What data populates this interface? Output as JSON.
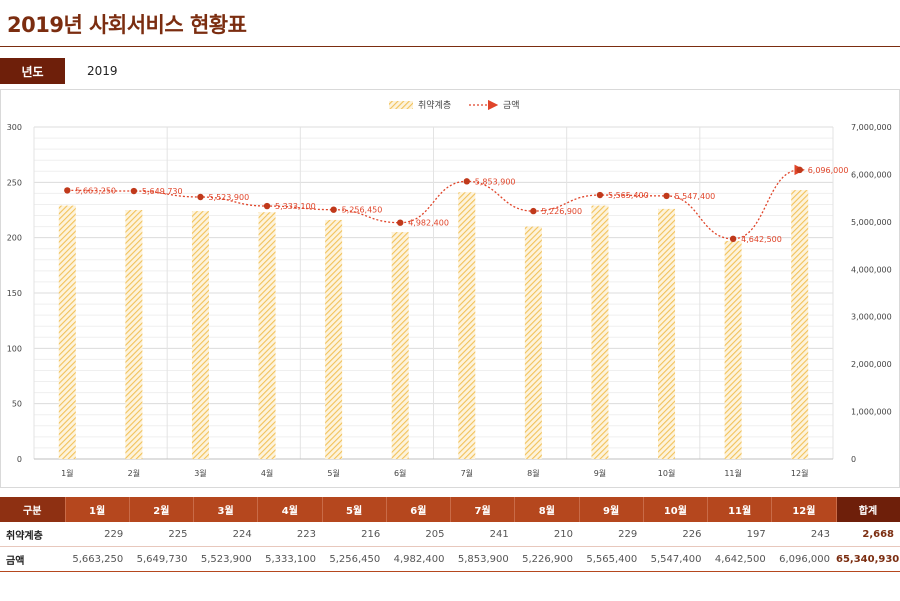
{
  "header": {
    "title": "2019년 사회서비스 현황표"
  },
  "filter": {
    "year_label": "년도",
    "year_value": "2019"
  },
  "colors": {
    "bar": "#f2c25a",
    "line": "#e0452a",
    "title": "#7b2d10",
    "table_header": "#b5471e",
    "total_header": "#6e1f0a"
  },
  "chart_data": {
    "type": "bar+line",
    "categories": [
      "1월",
      "2월",
      "3월",
      "4월",
      "5월",
      "6월",
      "7월",
      "8월",
      "9월",
      "10월",
      "11월",
      "12월"
    ],
    "series": [
      {
        "name": "취약계층",
        "type": "bar",
        "axis": "left",
        "values": [
          229,
          225,
          224,
          223,
          216,
          205,
          241,
          210,
          229,
          226,
          197,
          243
        ]
      },
      {
        "name": "금액",
        "type": "line",
        "axis": "right",
        "values": [
          5663250,
          5649730,
          5523900,
          5333100,
          5256450,
          4982400,
          5853900,
          5226900,
          5565400,
          5547400,
          4642500,
          6096000
        ],
        "labels": [
          "5,663,250",
          "5,649,730",
          "5,523,900",
          "5,333,100",
          "5,256,450",
          "4,982,400",
          "5,853,900",
          "5,226,900",
          "5,565,400",
          "5,547,400",
          "4,642,500",
          "6,096,000"
        ]
      }
    ],
    "ylim_left": [
      0,
      300
    ],
    "yticks_left": [
      "0",
      "50",
      "100",
      "150",
      "200",
      "250",
      "300"
    ],
    "ylim_right": [
      0,
      7000000
    ],
    "yticks_right": [
      "0",
      "1,000,000",
      "2,000,000",
      "3,000,000",
      "4,000,000",
      "5,000,000",
      "6,000,000",
      "7,000,000"
    ],
    "legend_position": "top-center",
    "grid": true
  },
  "table": {
    "header_first": "구분",
    "months": [
      "1월",
      "2월",
      "3월",
      "4월",
      "5월",
      "6월",
      "7월",
      "8월",
      "9월",
      "10월",
      "11월",
      "12월"
    ],
    "header_total": "합계",
    "rows": [
      {
        "label": "취약계층",
        "values": [
          "229",
          "225",
          "224",
          "223",
          "216",
          "205",
          "241",
          "210",
          "229",
          "226",
          "197",
          "243"
        ],
        "total": "2,668"
      },
      {
        "label": "금액",
        "values": [
          "5,663,250",
          "5,649,730",
          "5,523,900",
          "5,333,100",
          "5,256,450",
          "4,982,400",
          "5,853,900",
          "5,226,900",
          "5,565,400",
          "5,547,400",
          "4,642,500",
          "6,096,000"
        ],
        "total": "65,340,930"
      }
    ]
  }
}
